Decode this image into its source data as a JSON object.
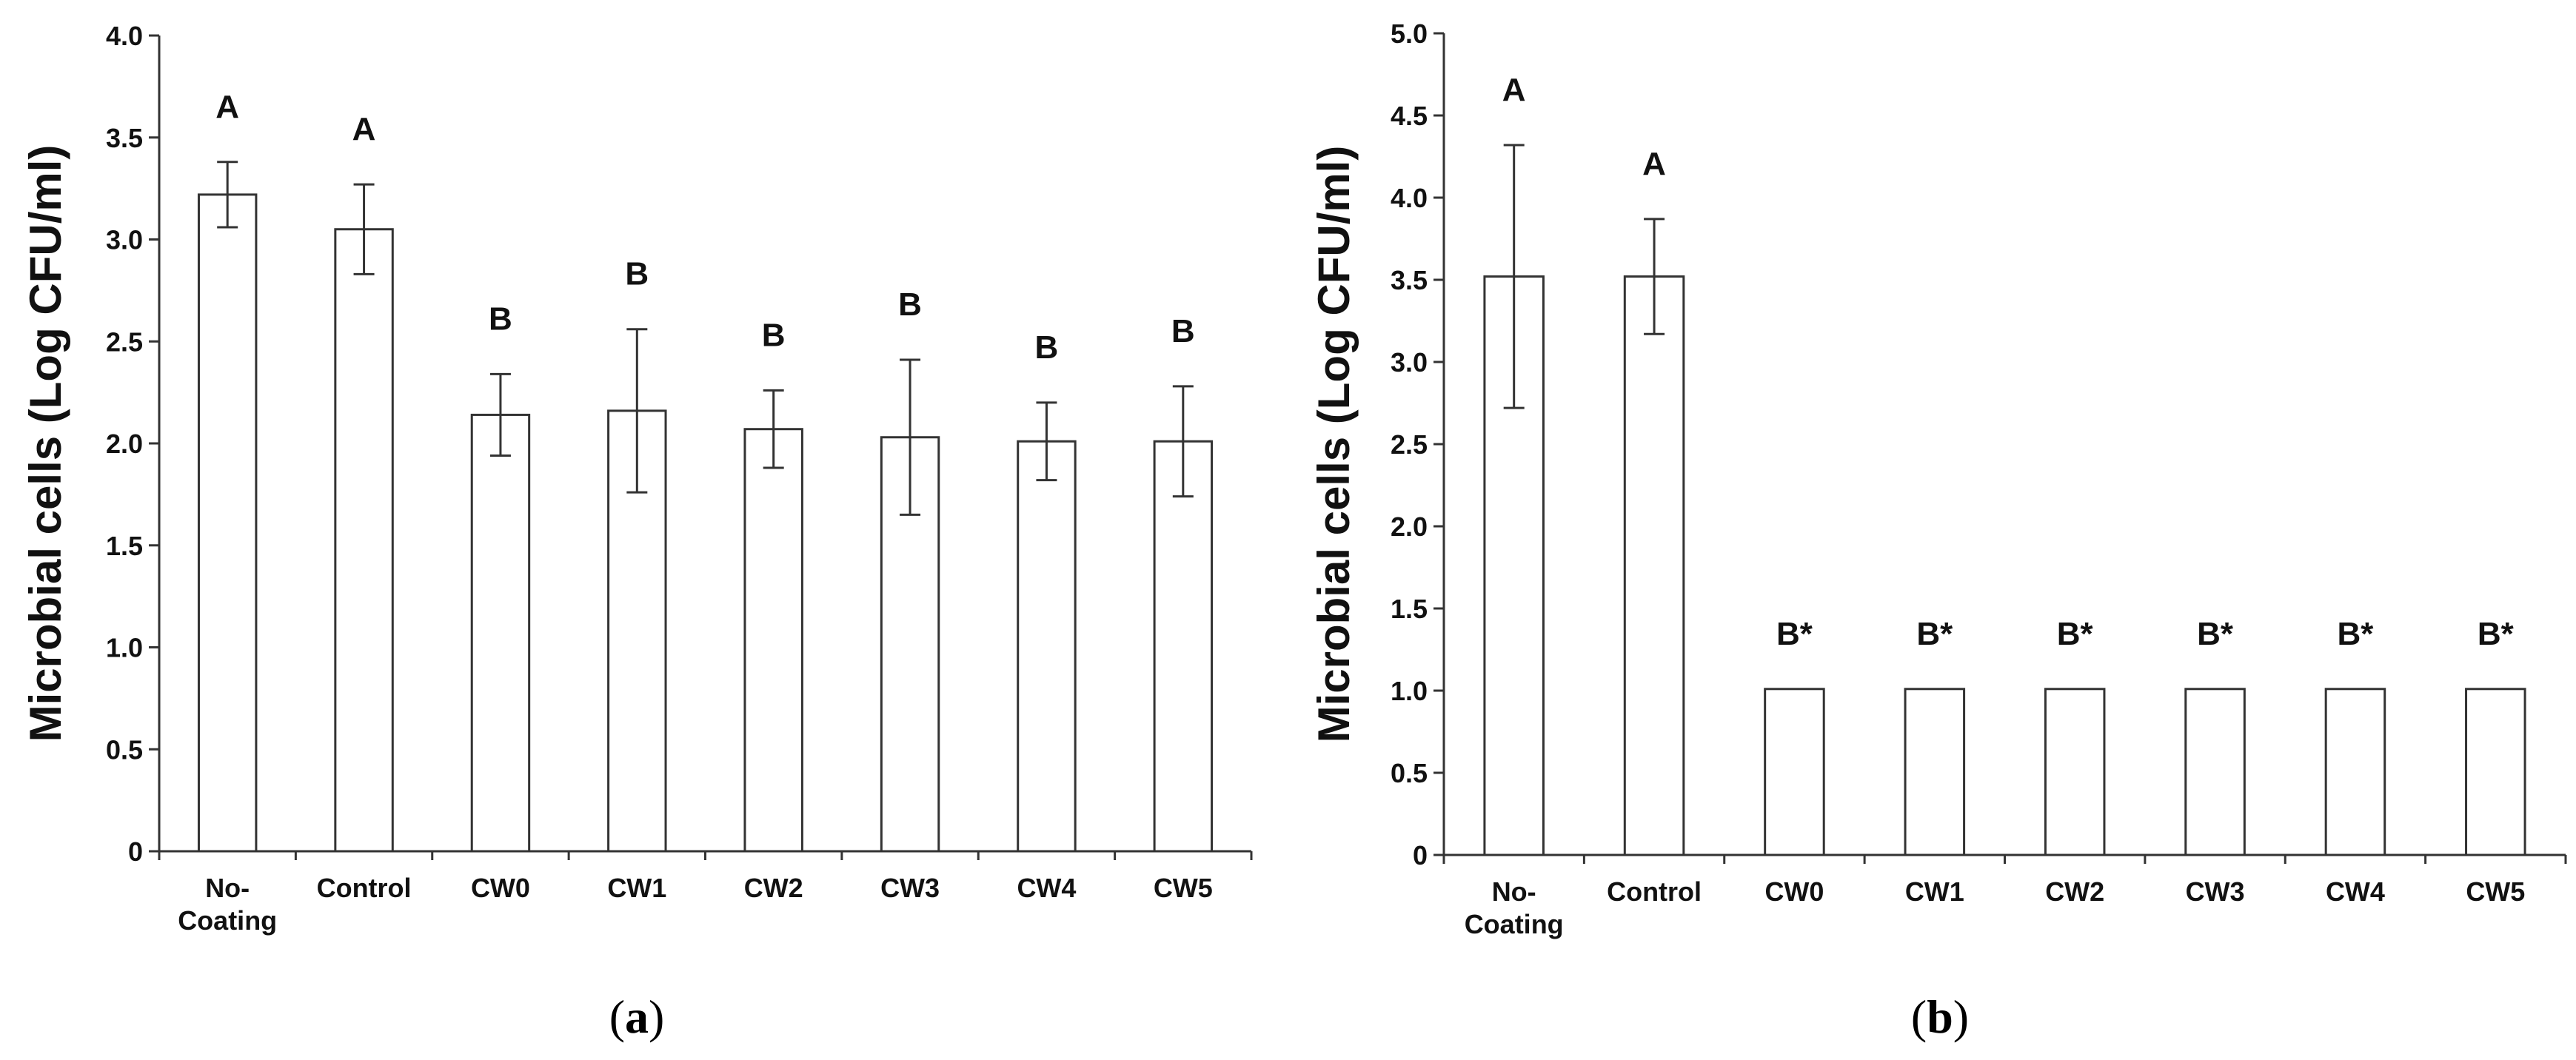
{
  "chart_data": [
    {
      "type": "bar",
      "caption": "a",
      "ylabel": "Microbial cells (Log CFU/ml)",
      "xlabel": "",
      "ylim": [
        0,
        4.0
      ],
      "yticks": [
        "0",
        "0.5",
        "1.0",
        "1.5",
        "2.0",
        "2.5",
        "3.0",
        "3.5",
        "4.0"
      ],
      "categories": [
        [
          "No-",
          "Coating"
        ],
        [
          "Control"
        ],
        [
          "CW0"
        ],
        [
          "CW1"
        ],
        [
          "CW2"
        ],
        [
          "CW3"
        ],
        [
          "CW4"
        ],
        [
          "CW5"
        ]
      ],
      "values": [
        3.22,
        3.05,
        2.14,
        2.16,
        2.07,
        2.03,
        2.01,
        2.01
      ],
      "errors": [
        0.16,
        0.22,
        0.2,
        0.4,
        0.19,
        0.38,
        0.19,
        0.27
      ],
      "significance": [
        "A",
        "A",
        "B",
        "B",
        "B",
        "B",
        "B",
        "B"
      ]
    },
    {
      "type": "bar",
      "caption": "b",
      "ylabel": "Microbial cells (Log CFU/ml)",
      "xlabel": "",
      "ylim": [
        0,
        5.0
      ],
      "yticks": [
        "0",
        "0.5",
        "1.0",
        "1.5",
        "2.0",
        "2.5",
        "3.0",
        "3.5",
        "4.0",
        "4.5",
        "5.0"
      ],
      "categories": [
        [
          "No-",
          "Coating"
        ],
        [
          "Control"
        ],
        [
          "CW0"
        ],
        [
          "CW1"
        ],
        [
          "CW2"
        ],
        [
          "CW3"
        ],
        [
          "CW4"
        ],
        [
          "CW5"
        ]
      ],
      "values": [
        3.52,
        3.52,
        1.01,
        1.01,
        1.01,
        1.01,
        1.01,
        1.01
      ],
      "errors": [
        0.8,
        0.35,
        0,
        0,
        0,
        0,
        0,
        0
      ],
      "significance": [
        "A",
        "A",
        "B*",
        "B*",
        "B*",
        "B*",
        "B*",
        "B*"
      ]
    }
  ]
}
